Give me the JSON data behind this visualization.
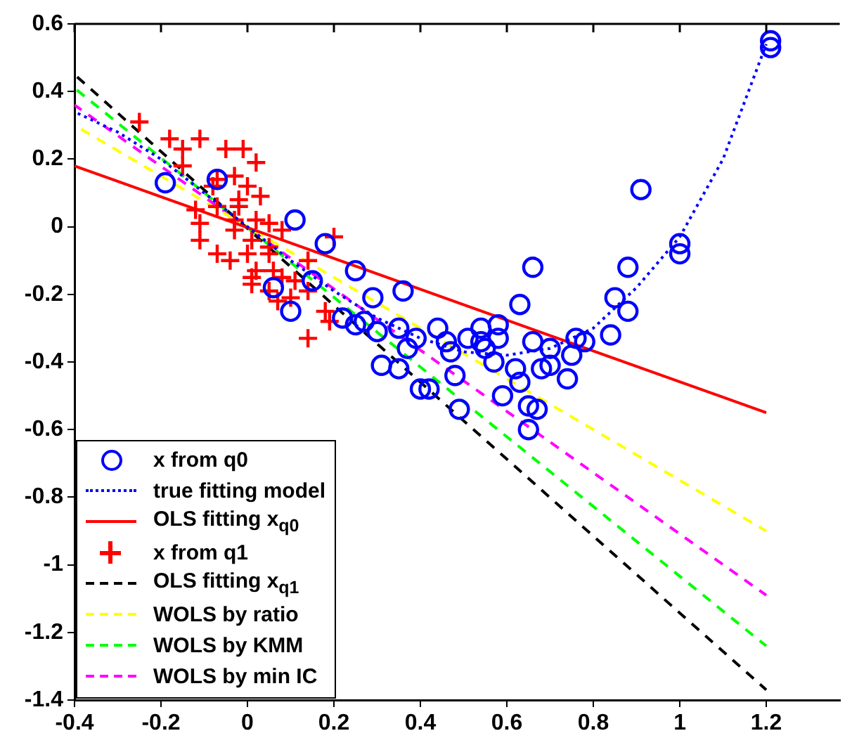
{
  "chart_data": {
    "type": "scatter",
    "xlim": [
      -0.4,
      1.37
    ],
    "xticks": [
      -0.4,
      -0.2,
      0,
      0.2,
      0.4,
      0.6,
      0.8,
      1,
      1.2
    ],
    "ylim": [
      -1.4,
      0.6
    ],
    "yticks": [
      -1.4,
      -1.2,
      -1,
      -0.8,
      -0.6,
      -0.4,
      -0.2,
      0,
      0.2,
      0.4,
      0.6
    ],
    "legend": "bottom left",
    "series": [
      {
        "name": "x from q0",
        "type": "scatter",
        "marker": "circle",
        "color": "#0000ff",
        "x": [
          -0.19,
          -0.07,
          0.11,
          0.1,
          0.06,
          0.15,
          0.18,
          0.25,
          0.25,
          0.22,
          0.27,
          0.29,
          0.3,
          0.31,
          0.35,
          0.36,
          0.35,
          0.37,
          0.39,
          0.4,
          0.42,
          0.44,
          0.46,
          0.47,
          0.48,
          0.49,
          0.51,
          0.54,
          0.54,
          0.55,
          0.57,
          0.58,
          0.58,
          0.59,
          0.62,
          0.63,
          0.63,
          0.65,
          0.65,
          0.66,
          0.66,
          0.67,
          0.68,
          0.7,
          0.7,
          0.74,
          0.75,
          0.76,
          0.78,
          0.84,
          0.85,
          0.88,
          0.88,
          0.91,
          1.0,
          1.0,
          1.21,
          1.21
        ],
        "values": [
          0.13,
          0.14,
          0.02,
          -0.25,
          -0.18,
          -0.16,
          -0.05,
          -0.13,
          -0.29,
          -0.27,
          -0.28,
          -0.21,
          -0.31,
          -0.41,
          -0.42,
          -0.19,
          -0.3,
          -0.36,
          -0.33,
          -0.48,
          -0.48,
          -0.3,
          -0.34,
          -0.37,
          -0.44,
          -0.54,
          -0.33,
          -0.34,
          -0.3,
          -0.36,
          -0.4,
          -0.33,
          -0.29,
          -0.5,
          -0.42,
          -0.46,
          -0.23,
          -0.53,
          -0.6,
          -0.34,
          -0.12,
          -0.54,
          -0.42,
          -0.36,
          -0.41,
          -0.45,
          -0.38,
          -0.33,
          -0.34,
          -0.32,
          -0.21,
          -0.25,
          -0.12,
          0.11,
          -0.05,
          -0.08,
          0.55,
          0.53
        ]
      },
      {
        "name": "true fitting model",
        "type": "line",
        "marker": "none",
        "line_style": "dotted",
        "color": "#0000ff",
        "x": [
          -0.4,
          -0.3,
          -0.2,
          -0.1,
          0,
          0.1,
          0.2,
          0.3,
          0.4,
          0.5,
          0.6,
          0.7,
          0.8,
          0.9,
          1.0,
          1.1,
          1.2
        ],
        "values": [
          0.34,
          0.28,
          0.2,
          0.1,
          0.0,
          -0.1,
          -0.19,
          -0.27,
          -0.33,
          -0.37,
          -0.38,
          -0.36,
          -0.3,
          -0.18,
          -0.03,
          0.2,
          0.54
        ]
      },
      {
        "name": "OLS fitting x$_{q0}$",
        "type": "line",
        "marker": "none",
        "line_style": "solid",
        "color": "#ff0000",
        "x": [
          -0.4,
          1.2
        ],
        "values": [
          0.18,
          -0.55
        ]
      },
      {
        "name": "x from q1",
        "type": "scatter",
        "marker": "cross",
        "color": "#ff0000",
        "x": [
          -0.25,
          -0.18,
          -0.11,
          -0.15,
          -0.05,
          -0.01,
          0.02,
          -0.15,
          -0.07,
          -0.03,
          0.0,
          0.03,
          -0.12,
          -0.07,
          -0.02,
          -0.11,
          -0.03,
          0.02,
          0.05,
          0.08,
          -0.03,
          -0.11,
          0.01,
          0.2,
          0.05,
          -0.07,
          -0.04,
          0.0,
          0.05,
          0.14,
          0.02,
          0.06,
          0.01,
          0.08,
          0.01,
          0.05,
          0.14,
          0.07,
          0.1,
          0.18,
          0.19,
          0.14,
          0.11,
          -0.02,
          -0.08
        ],
        "values": [
          0.31,
          0.26,
          0.26,
          0.23,
          0.23,
          0.23,
          0.19,
          0.18,
          0.14,
          0.15,
          0.12,
          0.09,
          0.05,
          0.06,
          0.06,
          0.01,
          0.02,
          0.02,
          0.01,
          -0.01,
          -0.01,
          -0.04,
          -0.04,
          -0.03,
          -0.06,
          -0.08,
          -0.1,
          -0.08,
          -0.08,
          -0.1,
          -0.13,
          -0.13,
          -0.15,
          -0.15,
          -0.17,
          -0.19,
          -0.19,
          -0.22,
          -0.21,
          -0.25,
          -0.28,
          -0.33,
          -0.16,
          0.08,
          0.12
        ]
      },
      {
        "name": "OLS fitting x$_{q1}$",
        "type": "line",
        "marker": "none",
        "line_style": "dashed",
        "color": "#000000",
        "x": [
          -0.4,
          1.2
        ],
        "values": [
          0.45,
          -1.37
        ]
      },
      {
        "name": "WOLS by ratio",
        "type": "line",
        "marker": "none",
        "line_style": "dashed",
        "color": "#ffff00",
        "x": [
          -0.4,
          1.2
        ],
        "values": [
          0.3,
          -0.9
        ]
      },
      {
        "name": "WOLS by KMM",
        "type": "line",
        "marker": "none",
        "line_style": "dashed",
        "color": "#00ff00",
        "x": [
          -0.4,
          1.2
        ],
        "values": [
          0.41,
          -1.24
        ]
      },
      {
        "name": "WOLS by min IC",
        "type": "line",
        "marker": "none",
        "line_style": "dashed",
        "color": "#ff00ff",
        "x": [
          -0.4,
          1.2
        ],
        "values": [
          0.36,
          -1.09
        ]
      }
    ]
  }
}
